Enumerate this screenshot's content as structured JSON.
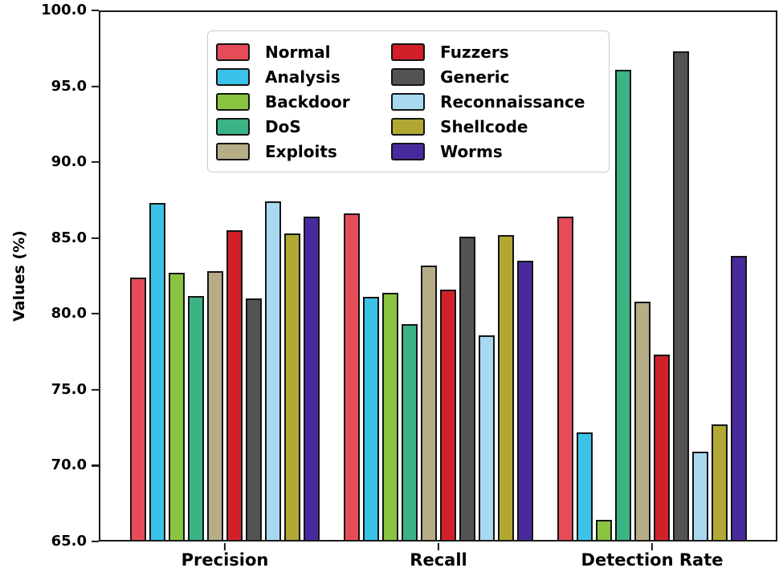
{
  "chart_data": {
    "type": "bar",
    "title": "",
    "xlabel": "",
    "ylabel": "Values (%)",
    "ylim": [
      65.0,
      100.0
    ],
    "yticks": [
      100.0,
      95.0,
      90.0,
      85.0,
      80.0,
      75.0,
      70.0,
      65.0
    ],
    "grid": "off",
    "legend_position": "upper left",
    "legend_columns": 2,
    "categories": [
      "Precision",
      "Recall",
      "Detection Rate"
    ],
    "series": [
      {
        "name": "Normal",
        "color": "#e64c58",
        "values": [
          82.3,
          86.5,
          86.3
        ]
      },
      {
        "name": "Analysis",
        "color": "#3cc2e8",
        "values": [
          87.2,
          81.0,
          72.1
        ]
      },
      {
        "name": "Backdoor",
        "color": "#89c441",
        "values": [
          82.6,
          81.3,
          66.3
        ]
      },
      {
        "name": "DoS",
        "color": "#3ab385",
        "values": [
          81.1,
          79.2,
          96.0
        ]
      },
      {
        "name": "Exploits",
        "color": "#b6ac86",
        "values": [
          82.7,
          83.1,
          80.7
        ]
      },
      {
        "name": "Fuzzers",
        "color": "#d1202a",
        "values": [
          85.4,
          81.5,
          77.2
        ]
      },
      {
        "name": "Generic",
        "color": "#535353",
        "values": [
          80.9,
          85.0,
          97.2
        ]
      },
      {
        "name": "Reconnaissance",
        "color": "#a8d9f1",
        "values": [
          87.3,
          78.5,
          70.8
        ]
      },
      {
        "name": "Shellcode",
        "color": "#b1a834",
        "values": [
          85.2,
          85.1,
          72.6
        ]
      },
      {
        "name": "Worms",
        "color": "#492a9e",
        "values": [
          86.3,
          83.4,
          83.7
        ]
      }
    ]
  }
}
